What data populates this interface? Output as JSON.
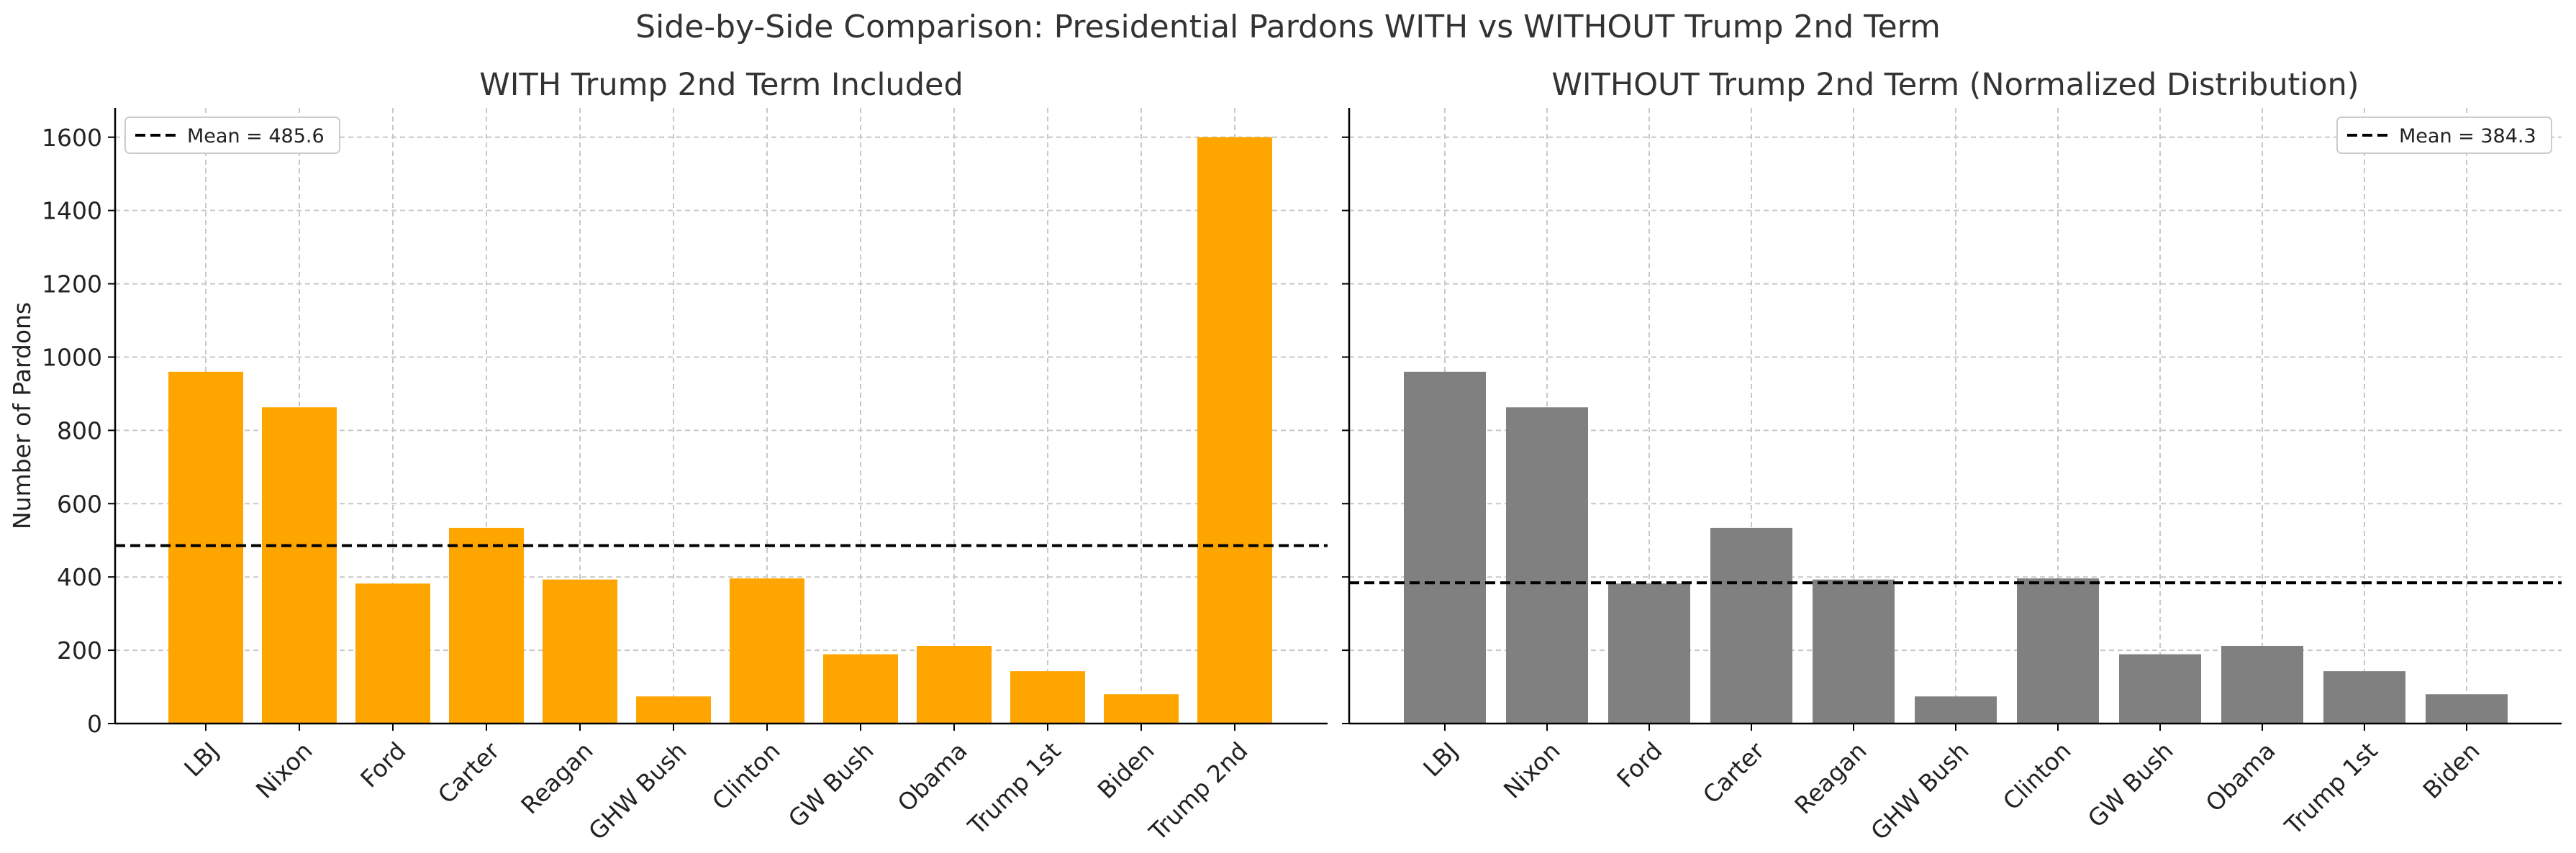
{
  "suptitle": "Side-by-Side Comparison: Presidential Pardons WITH vs WITHOUT Trump 2nd Term",
  "colors": {
    "with_bar": "#FFA500",
    "without_bar": "#808080",
    "mean_line": "#000000",
    "grid": "#c8c8c8",
    "axis": "#000000"
  },
  "chart_data": [
    {
      "type": "bar",
      "title": "WITH Trump 2nd Term Included",
      "xlabel": "",
      "ylabel": "Number of Pardons",
      "ylim": [
        0,
        1680
      ],
      "yticks": [
        0,
        200,
        400,
        600,
        800,
        1000,
        1200,
        1400,
        1600
      ],
      "grid": true,
      "legend_position": "upper left",
      "bar_color": "#FFA500",
      "categories": [
        "LBJ",
        "Nixon",
        "Ford",
        "Carter",
        "Reagan",
        "GHW Bush",
        "Clinton",
        "GW Bush",
        "Obama",
        "Trump 1st",
        "Biden",
        "Trump 2nd"
      ],
      "values": [
        960,
        863,
        382,
        534,
        393,
        74,
        396,
        189,
        212,
        143,
        80,
        1600
      ],
      "mean": 485.6,
      "mean_label": "Mean = 485.6"
    },
    {
      "type": "bar",
      "title": "WITHOUT Trump 2nd Term (Normalized Distribution)",
      "xlabel": "",
      "ylabel": "",
      "ylim": [
        0,
        1680
      ],
      "yticks": [
        0,
        200,
        400,
        600,
        800,
        1000,
        1200,
        1400,
        1600
      ],
      "grid": true,
      "legend_position": "upper right",
      "bar_color": "#808080",
      "categories": [
        "LBJ",
        "Nixon",
        "Ford",
        "Carter",
        "Reagan",
        "GHW Bush",
        "Clinton",
        "GW Bush",
        "Obama",
        "Trump 1st",
        "Biden"
      ],
      "values": [
        960,
        863,
        382,
        534,
        393,
        74,
        396,
        189,
        212,
        143,
        80
      ],
      "mean": 384.3,
      "mean_label": "Mean = 384.3"
    }
  ]
}
